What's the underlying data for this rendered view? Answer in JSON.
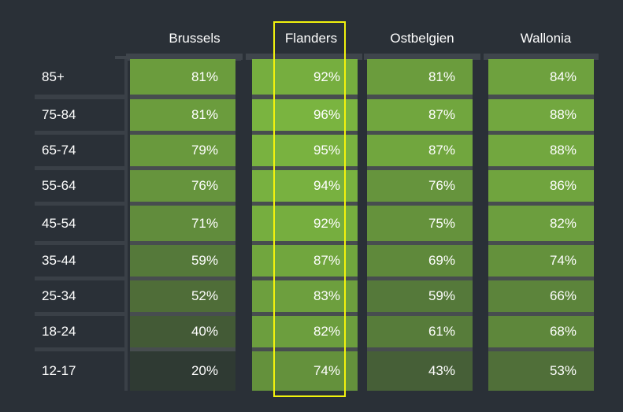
{
  "chart_data": {
    "type": "heatmap",
    "title": "",
    "xlabel": "",
    "ylabel": "",
    "columns": [
      "Brussels",
      "Flanders",
      "Ostbelgien",
      "Wallonia"
    ],
    "rows": [
      "85+",
      "75-84",
      "65-74",
      "55-64",
      "45-54",
      "35-44",
      "25-34",
      "18-24",
      "12-17"
    ],
    "value_labels": [
      [
        "81%",
        "92%",
        "81%",
        "84%"
      ],
      [
        "81%",
        "96%",
        "87%",
        "88%"
      ],
      [
        "79%",
        "95%",
        "87%",
        "88%"
      ],
      [
        "76%",
        "94%",
        "76%",
        "86%"
      ],
      [
        "71%",
        "92%",
        "75%",
        "82%"
      ],
      [
        "59%",
        "87%",
        "69%",
        "74%"
      ],
      [
        "52%",
        "83%",
        "59%",
        "66%"
      ],
      [
        "40%",
        "82%",
        "61%",
        "68%"
      ],
      [
        "20%",
        "74%",
        "43%",
        "53%"
      ]
    ],
    "values": [
      [
        81,
        92,
        81,
        84
      ],
      [
        81,
        96,
        87,
        88
      ],
      [
        79,
        95,
        87,
        88
      ],
      [
        76,
        94,
        76,
        86
      ],
      [
        71,
        92,
        75,
        82
      ],
      [
        59,
        87,
        69,
        74
      ],
      [
        52,
        83,
        59,
        66
      ],
      [
        40,
        82,
        61,
        68
      ],
      [
        20,
        74,
        43,
        53
      ]
    ],
    "value_range": [
      20,
      96
    ],
    "highlighted_column": "Flanders",
    "colors": {
      "background": "#2a3037",
      "cell_low": "#2f3a33",
      "cell_high": "#7ab440",
      "highlight_border": "#f2f20d",
      "text": "#ffffff"
    }
  }
}
